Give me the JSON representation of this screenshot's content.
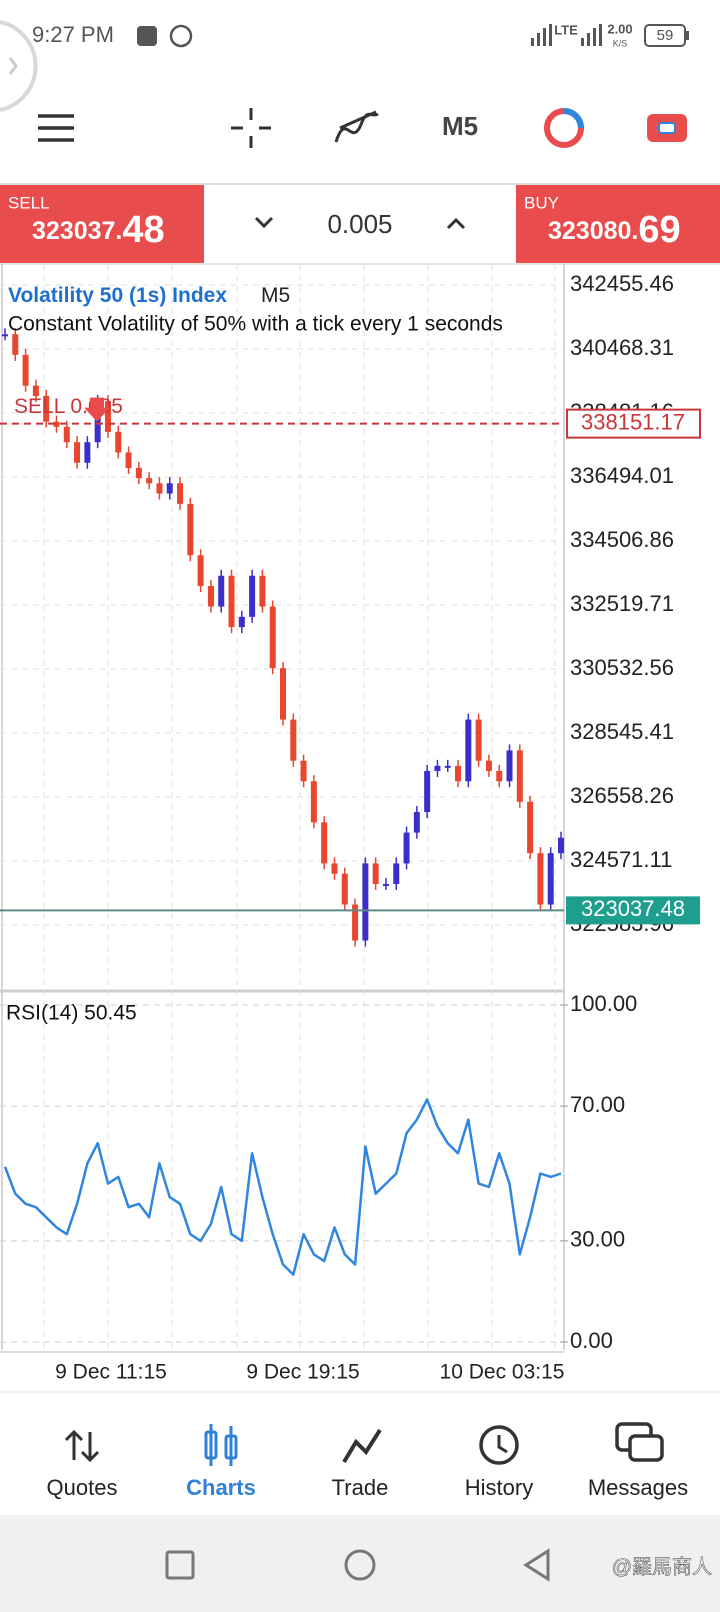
{
  "status_bar": {
    "time": "9:27 PM",
    "network": "LTE",
    "speed": "2.00",
    "speed_unit": "K/S",
    "battery": "59"
  },
  "toolbar": {
    "timeframe": "M5"
  },
  "trade_panel": {
    "sell_label": "SELL",
    "sell_price_main": "323037.",
    "sell_price_tail": "48",
    "lot": "0.005",
    "buy_label": "BUY",
    "buy_price_main": "323080.",
    "buy_price_tail": "69"
  },
  "chart_data": [
    {
      "type": "candlestick",
      "symbol": "Volatility 50 (1s) Index",
      "timeframe": "M5",
      "description": "Constant Volatility of 50% with a tick every 1 seconds",
      "ylim": [
        320566,
        343138
      ],
      "yticks": [
        342455.46,
        340468.31,
        338481.16,
        336494.01,
        334506.86,
        332519.71,
        330532.56,
        328545.41,
        326558.26,
        324571.11,
        322583.96
      ],
      "order_label": "SELL 0.005",
      "order_price": 338151.17,
      "current_price": 323037.48,
      "up_color": "#3a2fc9",
      "down_color": "#e8462e",
      "grid": true,
      "values": [
        340924,
        340286,
        339329,
        339010,
        338213,
        338053,
        337575,
        336937,
        337575,
        338851,
        337894,
        337256,
        336777,
        336458,
        336299,
        335980,
        336299,
        335661,
        334066,
        333109,
        332471,
        333428,
        331833,
        332152,
        333428,
        332471,
        330557,
        328962,
        327686,
        327048,
        325772,
        324496,
        324177,
        323220,
        322103,
        324496,
        323858,
        323858,
        324496,
        325453,
        326091,
        327367,
        327526,
        327526,
        327048,
        328962,
        327686,
        327367,
        327048,
        328005,
        326410,
        324815,
        323220,
        324815,
        325293
      ]
    },
    {
      "type": "line",
      "label": "RSI(14) 50.45",
      "color": "#2e86de",
      "ylim": [
        0,
        100
      ],
      "yticks": [
        {
          "value": 100,
          "label": "100.00"
        },
        {
          "value": 70,
          "label": "70.00"
        },
        {
          "value": 30,
          "label": "30.00"
        },
        {
          "value": 0,
          "label": "0.00"
        }
      ],
      "values": [
        52,
        44,
        41,
        40,
        37,
        34,
        32,
        41,
        53,
        59,
        47,
        49,
        40,
        41,
        37,
        53,
        43,
        41,
        32,
        30,
        35,
        46,
        32,
        30,
        56,
        43,
        32,
        23,
        20,
        32,
        26,
        24,
        34,
        26,
        23,
        58,
        44,
        47,
        50,
        62,
        66,
        72,
        64,
        59,
        56,
        66,
        47,
        46,
        56,
        47,
        26,
        37,
        50,
        49,
        50
      ]
    }
  ],
  "time_labels": [
    "9 Dec 11:15",
    "9 Dec 19:15",
    "10 Dec 03:15"
  ],
  "nav": [
    "Quotes",
    "Charts",
    "Trade",
    "History",
    "Messages"
  ],
  "watermark": "@羅馬商人"
}
